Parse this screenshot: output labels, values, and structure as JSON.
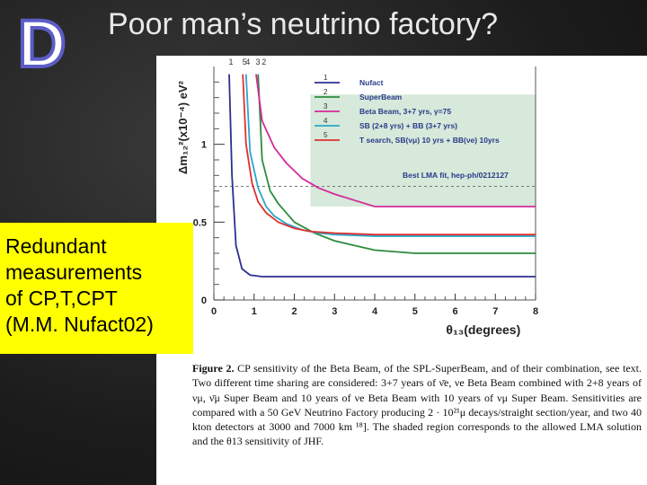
{
  "slide": {
    "letter": "D",
    "title": "Poor man’s neutrino factory?"
  },
  "note_box": {
    "lines": [
      "Redundant",
      "measurements",
      "of CP,T,CPT",
      "(M.M. Nufact02)"
    ],
    "color": "#ffff00"
  },
  "caption": {
    "label": "Figure 2.",
    "text": "CP sensitivity of the Beta Beam, of the SPL-SuperBeam, and of their combination, see text. Two different time sharing are considered: 3+7 years of ν̄e, νe Beta Beam combined with 2+8 years of νμ, ν̄μ Super Beam and 10 years of νe Beta Beam with 10 years of νμ Super Beam. Sensitivities are compared with a 50 GeV Neutrino Factory producing 2 · 10²¹μ decays/straight section/year, and two 40 kton detectors at 3000 and 7000 km ¹⁸]. The shaded region corresponds to the allowed LMA solution and the θ13 sensitivity of JHF."
  },
  "chart_data": {
    "type": "line",
    "ylabel": "Δm₁₂²(x10⁻⁴) eV²",
    "xlabel": "θ₁₃(degrees)",
    "x_ticks": [
      "0",
      "1",
      "2",
      "3",
      "4",
      "5",
      "6",
      "7",
      "8"
    ],
    "y_ticks": [
      "0",
      "0.5",
      "1"
    ],
    "top_labels": [
      "1",
      "5",
      "4",
      "3",
      "2"
    ],
    "xlim": [
      0,
      8
    ],
    "ylim": [
      0,
      1.5
    ],
    "best_fit_line": 0.73,
    "best_fit_label": "Best LMA fit, hep-ph/0212127",
    "shaded_region": {
      "x": [
        2.4,
        8
      ],
      "y": [
        0.6,
        1.32
      ]
    },
    "series": [
      {
        "key": "1",
        "name": "Nufact",
        "color": "#2b2f8f",
        "x": [
          0.38,
          0.45,
          0.55,
          0.7,
          0.9,
          1.2,
          1.6,
          2.0,
          3,
          4,
          5,
          6,
          7,
          8
        ],
        "y": [
          1.45,
          0.8,
          0.35,
          0.2,
          0.16,
          0.15,
          0.15,
          0.15,
          0.15,
          0.15,
          0.15,
          0.15,
          0.15,
          0.15
        ]
      },
      {
        "key": "2",
        "name": "SuperBeam",
        "color": "#2e8b3e",
        "x": [
          1.1,
          1.2,
          1.4,
          1.6,
          1.8,
          2.0,
          2.5,
          3.0,
          3.5,
          4,
          5,
          6,
          7,
          8
        ],
        "y": [
          1.45,
          0.9,
          0.7,
          0.62,
          0.56,
          0.5,
          0.43,
          0.38,
          0.35,
          0.32,
          0.3,
          0.3,
          0.3,
          0.3
        ]
      },
      {
        "key": "3",
        "name": "Beta Beam, 3+7 yrs, γ=75",
        "color": "#d42a9a",
        "x": [
          1.05,
          1.2,
          1.5,
          1.8,
          2.0,
          2.2,
          2.6,
          3.0,
          3.5,
          4,
          5,
          6,
          7,
          8
        ],
        "y": [
          1.45,
          1.15,
          0.98,
          0.88,
          0.83,
          0.78,
          0.72,
          0.68,
          0.64,
          0.6,
          0.6,
          0.6,
          0.6,
          0.6
        ]
      },
      {
        "key": "4",
        "name": "SB (2+8 yrs) + BB (3+7 yrs)",
        "color": "#2aa8c8",
        "x": [
          0.8,
          0.9,
          1.1,
          1.3,
          1.5,
          1.8,
          2.2,
          2.6,
          3.0,
          4,
          5,
          6,
          7,
          8
        ],
        "y": [
          1.45,
          0.95,
          0.72,
          0.6,
          0.54,
          0.49,
          0.45,
          0.43,
          0.42,
          0.41,
          0.41,
          0.41,
          0.41,
          0.41
        ]
      },
      {
        "key": "5",
        "name": "T search, SB(νμ) 10 yrs + BB(νe) 10yrs",
        "color": "#e03030",
        "x": [
          0.72,
          0.8,
          0.95,
          1.1,
          1.3,
          1.6,
          2.0,
          2.4,
          3.0,
          4,
          5,
          6,
          7,
          8
        ],
        "y": [
          1.45,
          1.0,
          0.75,
          0.63,
          0.56,
          0.5,
          0.46,
          0.44,
          0.43,
          0.42,
          0.42,
          0.42,
          0.42,
          0.42
        ]
      }
    ]
  }
}
